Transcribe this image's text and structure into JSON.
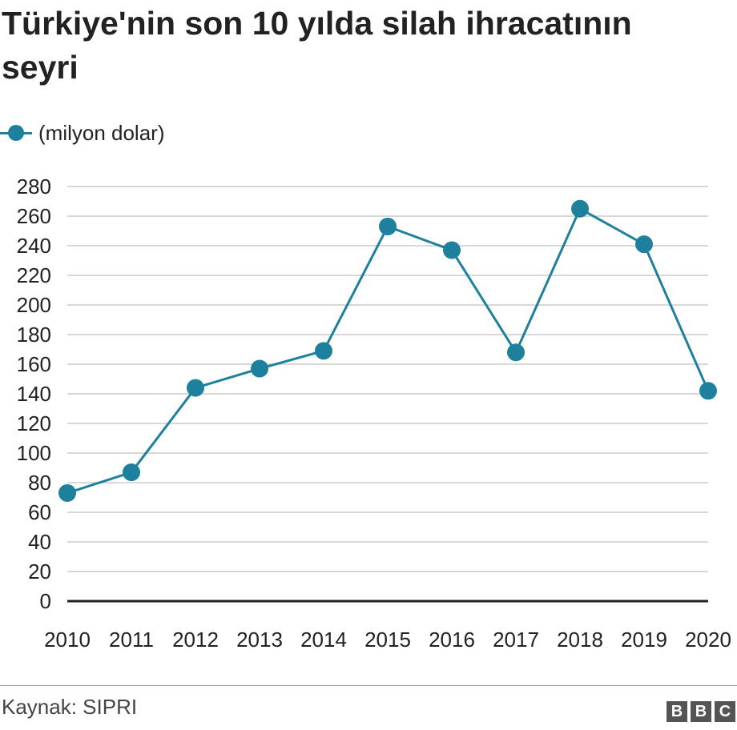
{
  "chart_data": {
    "type": "line",
    "title": "Türkiye'nin son 10 yılda silah ihracatının seyri",
    "categories": [
      "2010",
      "2011",
      "2012",
      "2013",
      "2014",
      "2015",
      "2016",
      "2017",
      "2018",
      "2019",
      "2020"
    ],
    "series": [
      {
        "name": "(milyon dolar)",
        "values": [
          73,
          87,
          144,
          157,
          169,
          253,
          237,
          168,
          265,
          241,
          142
        ],
        "color": "#1d809c"
      }
    ],
    "ylim": [
      0,
      280
    ],
    "yticks": [
      0,
      20,
      40,
      60,
      80,
      100,
      120,
      140,
      160,
      180,
      200,
      220,
      240,
      260,
      280
    ],
    "ytick_labels": [
      "0",
      "20",
      "40",
      "60",
      "80",
      "100",
      "120",
      "140",
      "160",
      "180",
      "200",
      "220",
      "240",
      "260",
      "280"
    ],
    "grid": true,
    "legend_position": "top-left",
    "xlabel": "",
    "ylabel": ""
  },
  "footer": {
    "source": "Kaynak: SIPRI",
    "logo_letters": [
      "B",
      "B",
      "C"
    ]
  },
  "colors": {
    "series": "#1d809c",
    "grid": "#cccccc",
    "axis": "#222222",
    "text": "#222222",
    "logo": "#555555"
  }
}
